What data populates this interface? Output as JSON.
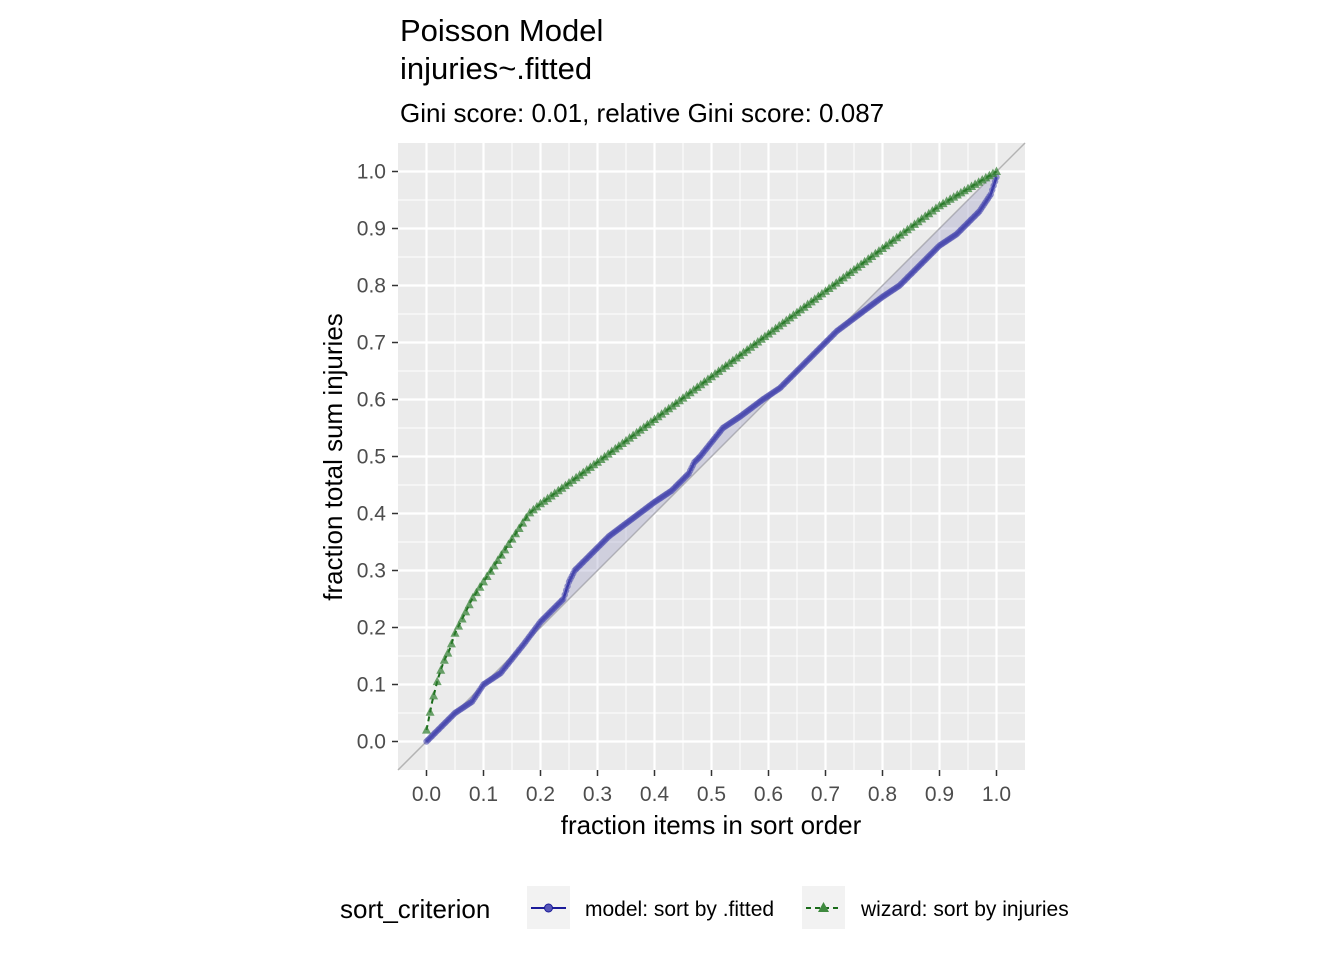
{
  "chart_data": {
    "type": "line",
    "title": "Poisson Model",
    "title_line2": "injuries~.fitted",
    "subtitle": "Gini score: 0.01, relative Gini score: 0.087",
    "xlabel": "fraction items in sort order",
    "ylabel": "fraction total sum injuries",
    "xlim": [
      -0.05,
      1.05
    ],
    "ylim": [
      -0.05,
      1.05
    ],
    "x_ticks": [
      "0.0",
      "0.1",
      "0.2",
      "0.3",
      "0.4",
      "0.5",
      "0.6",
      "0.7",
      "0.8",
      "0.9",
      "1.0"
    ],
    "y_ticks": [
      "0.0",
      "0.1",
      "0.2",
      "0.3",
      "0.4",
      "0.5",
      "0.6",
      "0.7",
      "0.8",
      "0.9",
      "1.0"
    ],
    "grid": true,
    "background": "#ebebeb",
    "reference_line": {
      "from": [
        0,
        0
      ],
      "to": [
        1,
        1
      ],
      "color": "#b3b3b3"
    },
    "legend": {
      "title": "sort_criterion",
      "position": "bottom",
      "entries": [
        {
          "label": "model: sort by .fitted",
          "color": "#1a1a99",
          "marker": "circle",
          "linestyle": "solid"
        },
        {
          "label": "wizard: sort by injuries",
          "color": "#1a6b1a",
          "marker": "triangle",
          "linestyle": "dashed"
        }
      ]
    },
    "series": [
      {
        "name": "model: sort by .fitted",
        "color": "#1a1a99",
        "marker": "circle",
        "x": [
          0.0,
          0.02,
          0.05,
          0.08,
          0.1,
          0.13,
          0.17,
          0.2,
          0.24,
          0.25,
          0.26,
          0.29,
          0.32,
          0.36,
          0.4,
          0.43,
          0.46,
          0.47,
          0.48,
          0.52,
          0.55,
          0.59,
          0.62,
          0.66,
          0.7,
          0.72,
          0.76,
          0.8,
          0.83,
          0.86,
          0.9,
          0.93,
          0.97,
          0.99,
          1.0
        ],
        "y": [
          0.0,
          0.02,
          0.05,
          0.07,
          0.1,
          0.12,
          0.17,
          0.21,
          0.25,
          0.28,
          0.3,
          0.33,
          0.36,
          0.39,
          0.42,
          0.44,
          0.47,
          0.49,
          0.5,
          0.55,
          0.57,
          0.6,
          0.62,
          0.66,
          0.7,
          0.72,
          0.75,
          0.78,
          0.8,
          0.83,
          0.87,
          0.89,
          0.93,
          0.96,
          0.99
        ]
      },
      {
        "name": "wizard: sort by injuries",
        "color": "#1a6b1a",
        "marker": "triangle",
        "x": [
          0.0,
          0.01,
          0.02,
          0.03,
          0.04,
          0.05,
          0.06,
          0.07,
          0.08,
          0.1,
          0.12,
          0.14,
          0.16,
          0.18,
          0.2,
          0.3,
          0.4,
          0.5,
          0.6,
          0.7,
          0.8,
          0.9,
          1.0
        ],
        "y": [
          0.02,
          0.07,
          0.11,
          0.14,
          0.16,
          0.19,
          0.21,
          0.23,
          0.25,
          0.28,
          0.31,
          0.34,
          0.37,
          0.4,
          0.417,
          0.49,
          0.565,
          0.64,
          0.715,
          0.79,
          0.865,
          0.94,
          1.0
        ]
      }
    ]
  }
}
